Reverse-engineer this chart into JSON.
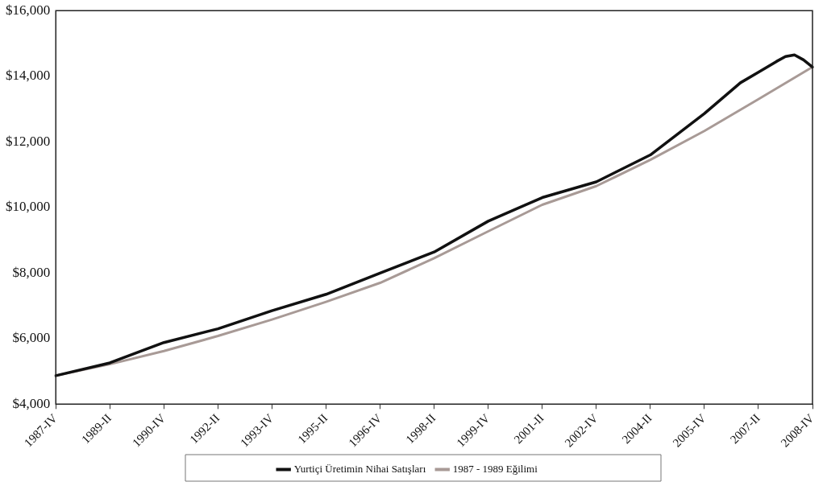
{
  "chart_data": {
    "type": "line",
    "categories": [
      "1987-IV",
      null,
      null,
      null,
      null,
      null,
      "1989-II",
      null,
      null,
      null,
      null,
      null,
      "1990-IV",
      null,
      null,
      null,
      null,
      null,
      "1992-II",
      null,
      null,
      null,
      null,
      null,
      "1993-IV",
      null,
      null,
      null,
      null,
      null,
      "1995-II",
      null,
      null,
      null,
      null,
      null,
      "1996-IV",
      null,
      null,
      null,
      null,
      null,
      "1998-II",
      null,
      null,
      null,
      null,
      null,
      "1999-IV",
      null,
      null,
      null,
      null,
      null,
      "2001-II",
      null,
      null,
      null,
      null,
      null,
      "2002-IV",
      null,
      null,
      null,
      null,
      null,
      "2004-II",
      null,
      null,
      null,
      null,
      null,
      "2005-IV",
      null,
      null,
      null,
      null,
      null,
      "2007-II",
      null,
      null,
      null,
      null,
      null,
      "2008-IV"
    ],
    "series": [
      {
        "name": "Yurtiçi Üretimin Nihai Satışları",
        "color": "#111111",
        "values": [
          4870,
          null,
          null,
          null,
          null,
          null,
          5260,
          null,
          null,
          null,
          null,
          null,
          5880,
          null,
          null,
          null,
          null,
          null,
          6300,
          null,
          null,
          null,
          null,
          null,
          6850,
          null,
          null,
          null,
          null,
          null,
          7350,
          null,
          null,
          null,
          null,
          null,
          8000,
          null,
          null,
          null,
          null,
          null,
          8640,
          null,
          null,
          null,
          null,
          null,
          9580,
          null,
          null,
          null,
          null,
          null,
          10300,
          null,
          null,
          null,
          null,
          null,
          10780,
          null,
          null,
          null,
          null,
          null,
          11600,
          null,
          null,
          null,
          null,
          null,
          12860,
          null,
          null,
          null,
          13800,
          null,
          14120,
          null,
          14450,
          14600,
          14650,
          14500,
          14280
        ]
      },
      {
        "name": "1987 - 1989 Eğilimi",
        "color": "#a89a96",
        "values": [
          4870,
          null,
          null,
          null,
          null,
          null,
          5220,
          null,
          null,
          null,
          null,
          null,
          5620,
          null,
          null,
          null,
          null,
          null,
          6080,
          null,
          null,
          null,
          null,
          null,
          6580,
          null,
          null,
          null,
          null,
          null,
          7120,
          null,
          null,
          null,
          null,
          null,
          7700,
          null,
          null,
          null,
          null,
          null,
          8450,
          null,
          null,
          null,
          null,
          null,
          9270,
          null,
          null,
          null,
          null,
          null,
          10080,
          null,
          null,
          null,
          null,
          null,
          10650,
          null,
          null,
          null,
          null,
          null,
          11450,
          null,
          null,
          null,
          null,
          null,
          12330,
          null,
          null,
          null,
          null,
          null,
          13300,
          null,
          null,
          null,
          null,
          null,
          14280
        ]
      }
    ],
    "ylim": [
      4000,
      16000
    ],
    "yticks": [
      {
        "value": 4000,
        "label": "$4,000"
      },
      {
        "value": 6000,
        "label": "$6,000"
      },
      {
        "value": 8000,
        "label": "$8,000"
      },
      {
        "value": 10000,
        "label": "$10,000"
      },
      {
        "value": 12000,
        "label": "$12,000"
      },
      {
        "value": 14000,
        "label": "$14,000"
      },
      {
        "value": 16000,
        "label": "$16,000"
      }
    ],
    "grid": false,
    "legend": "bottom",
    "marker": "none",
    "line_style": "solid"
  }
}
